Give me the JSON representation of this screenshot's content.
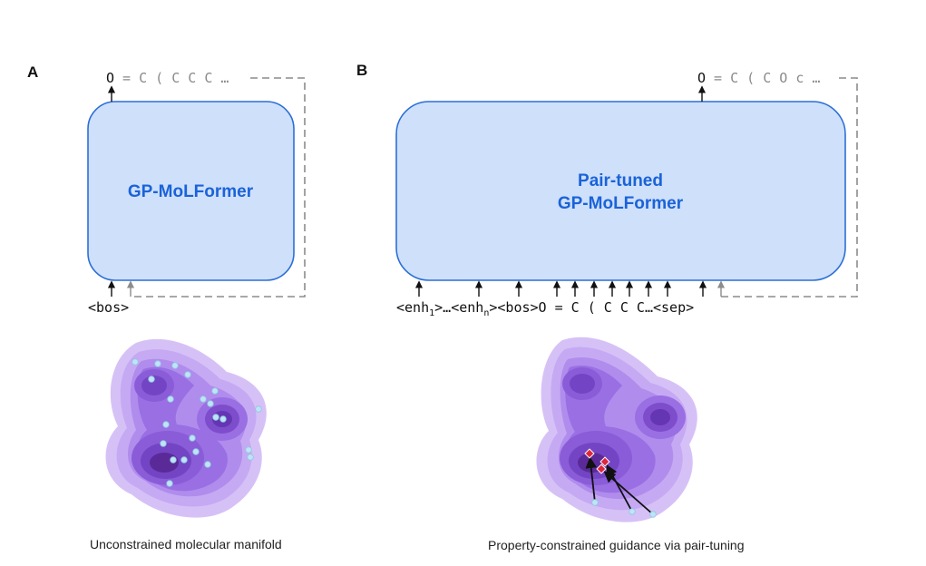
{
  "panels": {
    "a": {
      "label": "A",
      "model_name": "GP-MoLFormer",
      "input_token": "<bos>",
      "output_first": "O",
      "output_rest": " = C ( C C C …",
      "caption": "Unconstrained molecular manifold",
      "sample_points": 22
    },
    "b": {
      "label": "B",
      "model_line1": "Pair-tuned",
      "model_line2": "GP-MoLFormer",
      "input_seq": {
        "enh1_pre": "<enh",
        "enh1_sub": "1",
        "mid": ">…<enh",
        "enhn_sub": "n",
        "post": "><bos>O = C ( C C C…<sep>"
      },
      "output_first": "O",
      "output_rest": " = C ( C O c …",
      "caption": "Property-constrained guidance via pair-tuning",
      "guided_points": 3
    }
  },
  "colors": {
    "box_fill": "#cfe0fb",
    "box_stroke": "#2b6fd6",
    "title": "#1a63d8",
    "dashed": "#8c8c8c",
    "density_outer": "#c4a6f5",
    "density_inner": "#5b2a99",
    "point_fill": "#bfe4f5",
    "target_marker": "#e0263c"
  }
}
